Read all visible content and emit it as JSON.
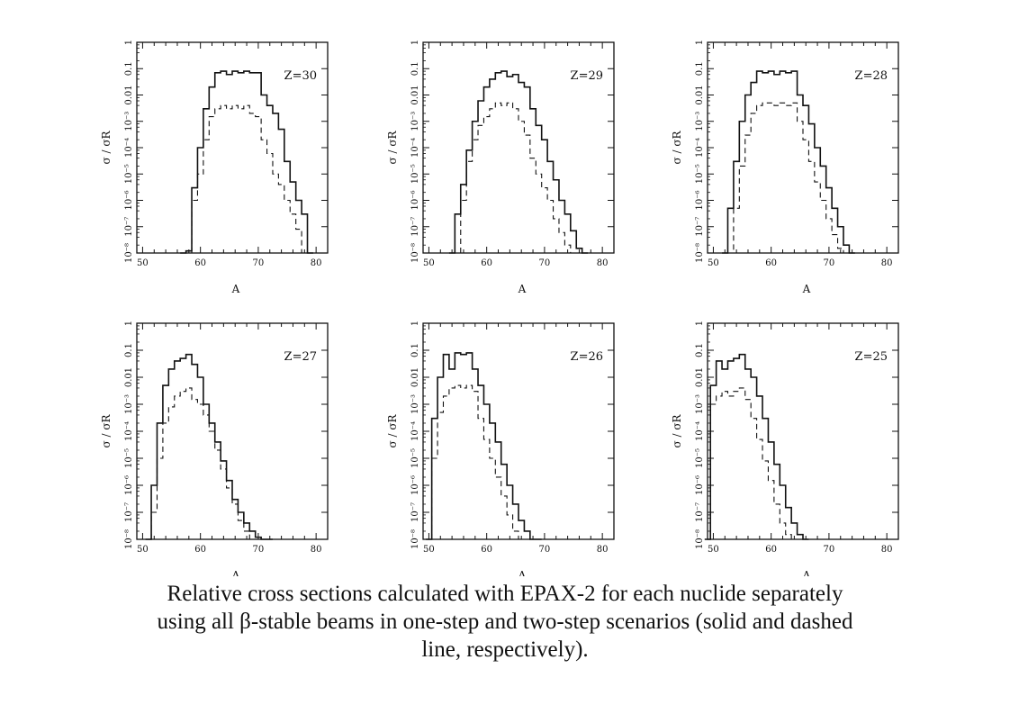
{
  "caption": {
    "line1": "Relative cross sections calculated  with EPAX-2 for each nuclide separately",
    "line2": "using all β-stable beams in one-step and two-step scenarios (solid and dashed",
    "line3": "line, respectively)."
  },
  "chart_data": [
    {
      "type": "line",
      "title": "Z=30",
      "xlabel": "A",
      "ylabel": "σ / σR",
      "scale_y": "log",
      "xlim": [
        49,
        82
      ],
      "ylim": [
        1e-08,
        1
      ],
      "x_ticks": [
        "50",
        "60",
        "70",
        "80"
      ],
      "y_ticks": [
        "10⁻⁸",
        "10⁻⁷",
        "10⁻⁶",
        "10⁻⁵",
        "10⁻⁴",
        "10⁻³",
        "0.01",
        "0.1",
        "1"
      ],
      "series": [
        {
          "style": "solid",
          "x": [
            57,
            58,
            59,
            60,
            61,
            62,
            63,
            64,
            65,
            66,
            67,
            68,
            69,
            70,
            71,
            72,
            73,
            74,
            75,
            76,
            77,
            78,
            79
          ],
          "y": [
            1e-08,
            1.2e-08,
            3e-06,
            0.0001,
            0.003,
            0.02,
            0.07,
            0.08,
            0.06,
            0.08,
            0.07,
            0.08,
            0.07,
            0.07,
            0.01,
            0.004,
            0.002,
            0.0005,
            3e-05,
            5e-06,
            1e-06,
            3e-07,
            1e-08
          ]
        },
        {
          "style": "dashed",
          "x": [
            59,
            60,
            61,
            62,
            63,
            64,
            65,
            66,
            67,
            68,
            69,
            70,
            71,
            72,
            73,
            74,
            75,
            76,
            77,
            78
          ],
          "y": [
            1e-06,
            1e-05,
            0.0002,
            0.0015,
            0.003,
            0.004,
            0.003,
            0.004,
            0.003,
            0.004,
            0.002,
            0.0015,
            0.0002,
            6e-05,
            1e-05,
            4e-06,
            1e-06,
            3e-07,
            8e-08,
            1e-08
          ]
        }
      ]
    },
    {
      "type": "line",
      "title": "Z=29",
      "xlabel": "A",
      "ylabel": "σ / σR",
      "scale_y": "log",
      "xlim": [
        49,
        82
      ],
      "ylim": [
        1e-08,
        1
      ],
      "x_ticks": [
        "50",
        "60",
        "70",
        "80"
      ],
      "y_ticks": [
        "10⁻⁸",
        "10⁻⁷",
        "10⁻⁶",
        "10⁻⁵",
        "10⁻⁴",
        "10⁻³",
        "0.01",
        "0.1",
        "1"
      ],
      "series": [
        {
          "style": "solid",
          "x": [
            54,
            55,
            56,
            57,
            58,
            59,
            60,
            61,
            62,
            63,
            64,
            65,
            66,
            67,
            68,
            69,
            70,
            71,
            72,
            73,
            74,
            75,
            76,
            77
          ],
          "y": [
            1e-08,
            3e-07,
            4e-06,
            8e-05,
            0.001,
            0.006,
            0.02,
            0.04,
            0.07,
            0.08,
            0.05,
            0.06,
            0.03,
            0.02,
            0.003,
            0.0007,
            0.0002,
            3e-05,
            6e-06,
            1e-06,
            3e-07,
            7e-08,
            1.5e-08,
            1e-08
          ]
        },
        {
          "style": "dashed",
          "x": [
            56,
            57,
            58,
            59,
            60,
            61,
            62,
            63,
            64,
            65,
            66,
            67,
            68,
            69,
            70,
            71,
            72,
            73,
            74,
            75,
            76
          ],
          "y": [
            1e-06,
            3e-05,
            0.0002,
            0.0007,
            0.0015,
            0.003,
            0.005,
            0.004,
            0.005,
            0.003,
            0.001,
            0.0003,
            4e-05,
            1e-05,
            3e-06,
            1e-06,
            2e-07,
            6e-08,
            2e-08,
            1e-08,
            1e-08
          ]
        }
      ]
    },
    {
      "type": "line",
      "title": "Z=28",
      "xlabel": "A",
      "ylabel": "σ / σR",
      "scale_y": "log",
      "xlim": [
        49,
        82
      ],
      "ylim": [
        1e-08,
        1
      ],
      "x_ticks": [
        "50",
        "60",
        "70",
        "80"
      ],
      "y_ticks": [
        "10⁻⁸",
        "10⁻⁷",
        "10⁻⁶",
        "10⁻⁵",
        "10⁻⁴",
        "10⁻³",
        "0.01",
        "0.1",
        "1"
      ],
      "series": [
        {
          "style": "solid",
          "x": [
            52,
            53,
            54,
            55,
            56,
            57,
            58,
            59,
            60,
            61,
            62,
            63,
            64,
            65,
            66,
            67,
            68,
            69,
            70,
            71,
            72,
            73,
            74
          ],
          "y": [
            1e-08,
            5e-07,
            3e-05,
            0.001,
            0.01,
            0.03,
            0.08,
            0.07,
            0.08,
            0.06,
            0.08,
            0.07,
            0.08,
            0.01,
            0.004,
            0.0008,
            0.0001,
            2e-05,
            3e-06,
            5e-07,
            1e-07,
            2e-08,
            1e-08
          ]
        },
        {
          "style": "dashed",
          "x": [
            53,
            54,
            55,
            56,
            57,
            58,
            59,
            60,
            61,
            62,
            63,
            64,
            65,
            66,
            67,
            68,
            69,
            70,
            71,
            72,
            73
          ],
          "y": [
            1e-08,
            5e-07,
            2e-05,
            0.0003,
            0.002,
            0.004,
            0.005,
            0.005,
            0.004,
            0.005,
            0.004,
            0.005,
            0.001,
            0.0002,
            3e-05,
            5e-06,
            1e-06,
            2e-07,
            5e-08,
            1.5e-08,
            1e-08
          ]
        }
      ]
    },
    {
      "type": "line",
      "title": "Z=27",
      "xlabel": "A",
      "ylabel": "σ / σR",
      "scale_y": "log",
      "xlim": [
        49,
        82
      ],
      "ylim": [
        1e-08,
        1
      ],
      "x_ticks": [
        "50",
        "60",
        "70",
        "80"
      ],
      "y_ticks": [
        "10⁻⁸",
        "10⁻⁷",
        "10⁻⁶",
        "10⁻⁵",
        "10⁻⁴",
        "10⁻³",
        "0.01",
        "0.1",
        "1"
      ],
      "series": [
        {
          "style": "solid",
          "x": [
            51,
            52,
            53,
            54,
            55,
            56,
            57,
            58,
            59,
            60,
            61,
            62,
            63,
            64,
            65,
            66,
            67,
            68,
            69,
            70,
            71,
            72
          ],
          "y": [
            1e-08,
            1e-06,
            0.0002,
            0.005,
            0.02,
            0.04,
            0.05,
            0.07,
            0.03,
            0.01,
            0.001,
            0.0002,
            4e-05,
            8e-06,
            1.5e-06,
            3e-07,
            1e-07,
            4e-08,
            2e-08,
            1.2e-08,
            1e-08,
            1e-08
          ]
        },
        {
          "style": "dashed",
          "x": [
            52,
            53,
            54,
            55,
            56,
            57,
            58,
            59,
            60,
            61,
            62,
            63,
            64,
            65,
            66,
            67,
            68,
            69,
            70
          ],
          "y": [
            1e-07,
            1e-05,
            0.0002,
            0.0008,
            0.002,
            0.003,
            0.004,
            0.0015,
            0.001,
            0.0004,
            0.0001,
            2e-05,
            4e-06,
            8e-07,
            2e-07,
            5e-08,
            2e-08,
            1e-08,
            1e-08
          ]
        }
      ]
    },
    {
      "type": "line",
      "title": "Z=26",
      "xlabel": "A",
      "ylabel": "σ / σR",
      "scale_y": "log",
      "xlim": [
        49,
        82
      ],
      "ylim": [
        1e-08,
        1
      ],
      "x_ticks": [
        "50",
        "60",
        "70",
        "80"
      ],
      "y_ticks": [
        "10⁻⁸",
        "10⁻⁷",
        "10⁻⁶",
        "10⁻⁵",
        "10⁻⁴",
        "10⁻³",
        "0.01",
        "0.1",
        "1"
      ],
      "series": [
        {
          "style": "solid",
          "x": [
            50,
            51,
            52,
            53,
            54,
            55,
            56,
            57,
            58,
            59,
            60,
            61,
            62,
            63,
            64,
            65,
            66,
            67,
            68,
            69
          ],
          "y": [
            1e-08,
            0.0003,
            0.01,
            0.07,
            0.02,
            0.08,
            0.07,
            0.08,
            0.02,
            0.005,
            0.001,
            0.0002,
            4e-05,
            6e-06,
            1e-06,
            2e-07,
            5e-08,
            2e-08,
            1e-08,
            1e-08
          ]
        },
        {
          "style": "dashed",
          "x": [
            51,
            52,
            53,
            54,
            55,
            56,
            57,
            58,
            59,
            60,
            61,
            62,
            63,
            64,
            65,
            66,
            67
          ],
          "y": [
            1e-05,
            0.0005,
            0.002,
            0.004,
            0.005,
            0.004,
            0.005,
            0.003,
            0.0003,
            5e-05,
            1e-05,
            2e-06,
            4e-07,
            8e-08,
            2e-08,
            1e-08,
            1e-08
          ]
        }
      ]
    },
    {
      "type": "line",
      "title": "Z=25",
      "xlabel": "A",
      "ylabel": "σ / σR",
      "scale_y": "log",
      "xlim": [
        49,
        82
      ],
      "ylim": [
        1e-08,
        1
      ],
      "x_ticks": [
        "50",
        "60",
        "70",
        "80"
      ],
      "y_ticks": [
        "10⁻⁸",
        "10⁻⁷",
        "10⁻⁶",
        "10⁻⁵",
        "10⁻⁴",
        "10⁻³",
        "0.01",
        "0.1",
        "1"
      ],
      "series": [
        {
          "style": "solid",
          "x": [
            49,
            50,
            51,
            52,
            53,
            54,
            55,
            56,
            57,
            58,
            59,
            60,
            61,
            62,
            63,
            64,
            65,
            66
          ],
          "y": [
            1e-08,
            0.005,
            0.04,
            0.02,
            0.04,
            0.05,
            0.07,
            0.02,
            0.01,
            0.002,
            0.0003,
            4e-05,
            6e-06,
            1e-06,
            1.5e-07,
            4e-08,
            1.5e-08,
            1e-08
          ]
        },
        {
          "style": "dashed",
          "x": [
            50,
            51,
            52,
            53,
            54,
            55,
            56,
            57,
            58,
            59,
            60,
            61,
            62,
            63,
            64
          ],
          "y": [
            0.001,
            0.002,
            0.003,
            0.002,
            0.003,
            0.004,
            0.0015,
            0.0003,
            5e-05,
            8e-06,
            1.5e-06,
            2e-07,
            4e-08,
            1.5e-08,
            1e-08
          ]
        }
      ]
    }
  ]
}
